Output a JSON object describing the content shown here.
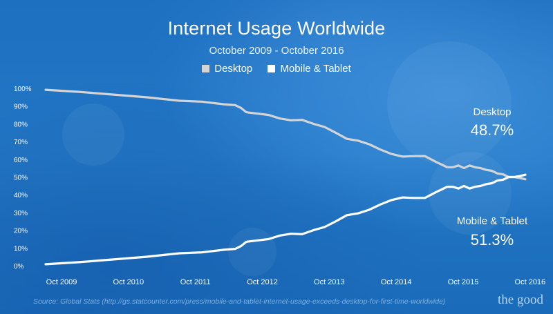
{
  "colors": {
    "desktop": "#d4d4d4",
    "mobile": "#ffffff",
    "background": "#1f73c2"
  },
  "chart_data": {
    "type": "line",
    "title": "Internet Usage Worldwide",
    "subtitle": "October 2009 - October 2016",
    "xlabel": "",
    "ylabel": "",
    "ylim": [
      0,
      100
    ],
    "legend_position": "top-center",
    "grid": false,
    "y_ticks": [
      "0%",
      "10%",
      "20%",
      "30%",
      "40%",
      "50%",
      "60%",
      "70%",
      "80%",
      "90%",
      "100%"
    ],
    "y_tick_values": [
      0,
      10,
      20,
      30,
      40,
      50,
      60,
      70,
      80,
      90,
      100
    ],
    "x_ticks": [
      "Oct 2009",
      "Oct 2010",
      "Oct 2011",
      "Oct 2012",
      "Oct 2013",
      "Oct 2014",
      "Oct 2015",
      "Oct 2016"
    ],
    "x_tick_values": [
      0,
      12,
      24,
      36,
      48,
      60,
      72,
      84
    ],
    "series": [
      {
        "name": "Desktop",
        "x": [
          0,
          6,
          12,
          18,
          24,
          28,
          32,
          34,
          35,
          36,
          40,
          42,
          44,
          46,
          48,
          50,
          52,
          54,
          56,
          58,
          60,
          62,
          64,
          66,
          68,
          70,
          71,
          72,
          73,
          74,
          75,
          76,
          77,
          78,
          79,
          80,
          81,
          82,
          83,
          84,
          85,
          86
        ],
        "values": [
          99.2,
          98.0,
          96.5,
          95.0,
          93.0,
          92.5,
          91.0,
          90.5,
          89.0,
          86.5,
          85.0,
          83.0,
          82.0,
          82.2,
          80.0,
          78.2,
          75.0,
          71.5,
          70.5,
          68.5,
          65.5,
          63.0,
          61.5,
          61.8,
          61.8,
          58.5,
          57.0,
          55.5,
          55.5,
          56.5,
          55.0,
          56.5,
          55.5,
          55.0,
          54.0,
          53.5,
          52.0,
          51.5,
          50.0,
          50.0,
          49.5,
          48.7
        ]
      },
      {
        "name": "Mobile & Tablet",
        "x": [
          0,
          6,
          12,
          18,
          24,
          28,
          32,
          34,
          35,
          36,
          40,
          42,
          44,
          46,
          48,
          50,
          52,
          54,
          56,
          58,
          60,
          62,
          64,
          66,
          68,
          70,
          71,
          72,
          73,
          74,
          75,
          76,
          77,
          78,
          79,
          80,
          81,
          82,
          83,
          84,
          85,
          86
        ],
        "values": [
          0.8,
          2.0,
          3.5,
          5.0,
          7.0,
          7.5,
          9.0,
          9.5,
          11.0,
          13.5,
          15.0,
          17.0,
          18.0,
          17.8,
          20.0,
          21.8,
          25.0,
          28.5,
          29.5,
          31.5,
          34.5,
          37.0,
          38.5,
          38.2,
          38.2,
          41.5,
          43.0,
          44.5,
          44.5,
          43.5,
          45.0,
          43.5,
          44.5,
          45.0,
          46.0,
          46.5,
          48.0,
          48.5,
          50.0,
          50.0,
          50.5,
          51.3
        ]
      }
    ],
    "annotations": [
      {
        "series": "Desktop",
        "label": "Desktop",
        "value": "48.7%"
      },
      {
        "series": "Mobile & Tablet",
        "label": "Mobile & Tablet",
        "value": "51.3%"
      }
    ]
  },
  "legend": {
    "items": [
      {
        "label": "Desktop"
      },
      {
        "label": "Mobile & Tablet"
      }
    ]
  },
  "footer": {
    "source": "Source: Global Stats (http://gs.statcounter.com/press/mobile-and-tablet-internet-usage-exceeds-desktop-for-first-time-worldwide)",
    "brand": "the good"
  }
}
